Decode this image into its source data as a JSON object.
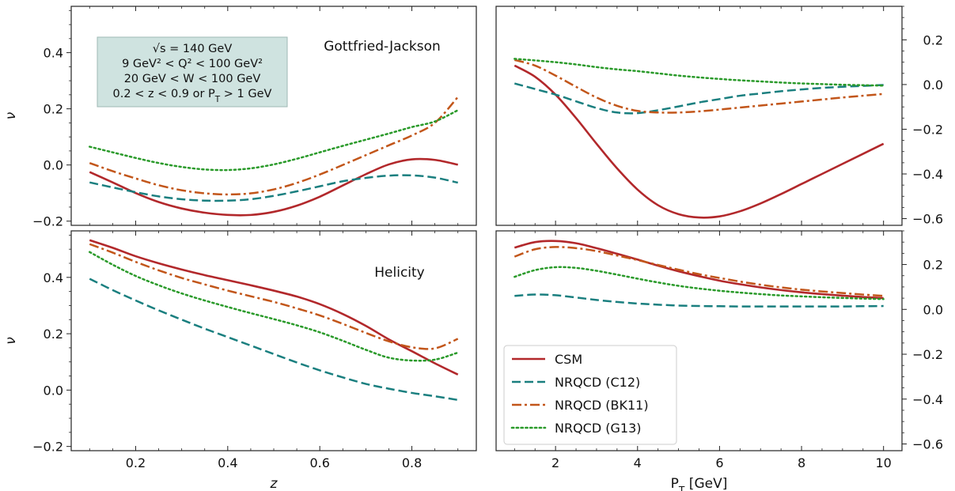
{
  "chart_data": [
    {
      "id": "top-left",
      "type": "line",
      "panel_title": "Gottfried-Jackson",
      "xlabel": "",
      "ylabel": "ν",
      "xlim": [
        0.06,
        0.94
      ],
      "ylim": [
        -0.215,
        0.565
      ],
      "xticks": [
        0.2,
        0.4,
        0.6,
        0.8
      ],
      "yticks": [
        -0.2,
        0.0,
        0.2,
        0.4
      ],
      "ytick_labels": [
        "−0.2",
        "0.0",
        "0.2",
        "0.4"
      ],
      "x_tick_labels_shown": false,
      "y_axis_side": "left",
      "x": [
        0.1,
        0.15,
        0.2,
        0.25,
        0.3,
        0.35,
        0.4,
        0.45,
        0.5,
        0.55,
        0.6,
        0.65,
        0.7,
        0.75,
        0.8,
        0.85,
        0.9
      ],
      "series": [
        {
          "name": "CSM",
          "values": [
            -0.025,
            -0.062,
            -0.1,
            -0.132,
            -0.155,
            -0.17,
            -0.178,
            -0.178,
            -0.167,
            -0.145,
            -0.113,
            -0.073,
            -0.033,
            0.002,
            0.02,
            0.018,
            0.001
          ]
        },
        {
          "name": "NRQCD (C12)",
          "values": [
            -0.062,
            -0.08,
            -0.097,
            -0.112,
            -0.122,
            -0.127,
            -0.127,
            -0.122,
            -0.11,
            -0.094,
            -0.076,
            -0.058,
            -0.046,
            -0.038,
            -0.037,
            -0.045,
            -0.063
          ]
        },
        {
          "name": "NRQCD (BK11)",
          "values": [
            0.007,
            -0.022,
            -0.048,
            -0.072,
            -0.09,
            -0.101,
            -0.105,
            -0.101,
            -0.087,
            -0.064,
            -0.034,
            0.0,
            0.035,
            0.07,
            0.105,
            0.15,
            0.242
          ]
        },
        {
          "name": "NRQCD (G13)",
          "values": [
            0.065,
            0.045,
            0.025,
            0.007,
            -0.007,
            -0.016,
            -0.018,
            -0.012,
            0.002,
            0.022,
            0.045,
            0.068,
            0.09,
            0.112,
            0.135,
            0.155,
            0.195
          ]
        }
      ],
      "info_box": [
        "√s = 140 GeV",
        "9 GeV² < Q² < 100 GeV²",
        "20 GeV < W < 100 GeV",
        "0.2 < z < 0.9 or P_T > 1 GeV"
      ]
    },
    {
      "id": "top-right",
      "type": "line",
      "panel_title": "",
      "xlabel": "",
      "ylabel": "",
      "xlim": [
        0.55,
        10.45
      ],
      "ylim": [
        -0.63,
        0.35
      ],
      "xticks": [
        2,
        4,
        6,
        8,
        10
      ],
      "yticks": [
        -0.6,
        -0.4,
        -0.2,
        0.0,
        0.2
      ],
      "ytick_labels": [
        "−0.6",
        "−0.4",
        "−0.2",
        "0.0",
        "0.2"
      ],
      "x_tick_labels_shown": false,
      "y_axis_side": "right",
      "x": [
        1,
        1.5,
        2,
        2.5,
        3,
        3.5,
        4,
        4.5,
        5,
        5.5,
        6,
        6.5,
        7,
        7.5,
        8,
        8.5,
        9,
        9.5,
        10
      ],
      "series": [
        {
          "name": "CSM",
          "values": [
            0.085,
            0.035,
            -0.045,
            -0.15,
            -0.265,
            -0.375,
            -0.47,
            -0.54,
            -0.58,
            -0.595,
            -0.59,
            -0.567,
            -0.532,
            -0.49,
            -0.445,
            -0.4,
            -0.355,
            -0.31,
            -0.265
          ]
        },
        {
          "name": "NRQCD (C12)",
          "values": [
            0.005,
            -0.02,
            -0.045,
            -0.075,
            -0.105,
            -0.125,
            -0.128,
            -0.115,
            -0.098,
            -0.08,
            -0.065,
            -0.05,
            -0.04,
            -0.03,
            -0.022,
            -0.015,
            -0.01,
            -0.006,
            -0.002
          ]
        },
        {
          "name": "NRQCD (BK11)",
          "values": [
            0.11,
            0.085,
            0.04,
            -0.01,
            -0.058,
            -0.095,
            -0.118,
            -0.125,
            -0.125,
            -0.12,
            -0.112,
            -0.103,
            -0.094,
            -0.085,
            -0.076,
            -0.067,
            -0.058,
            -0.05,
            -0.042
          ]
        },
        {
          "name": "NRQCD (G13)",
          "values": [
            0.115,
            0.108,
            0.1,
            0.09,
            0.078,
            0.068,
            0.06,
            0.05,
            0.04,
            0.032,
            0.025,
            0.019,
            0.014,
            0.009,
            0.005,
            0.002,
            -0.001,
            -0.003,
            -0.005
          ]
        }
      ]
    },
    {
      "id": "bottom-left",
      "type": "line",
      "panel_title": "Helicity",
      "xlabel": "z",
      "ylabel": "ν",
      "xlim": [
        0.06,
        0.94
      ],
      "ylim": [
        -0.215,
        0.565
      ],
      "xticks": [
        0.2,
        0.4,
        0.6,
        0.8
      ],
      "xtick_labels": [
        "0.2",
        "0.4",
        "0.6",
        "0.8"
      ],
      "yticks": [
        -0.2,
        0.0,
        0.2,
        0.4
      ],
      "ytick_labels": [
        "−0.2",
        "0.0",
        "0.2",
        "0.4"
      ],
      "x_tick_labels_shown": true,
      "y_axis_side": "left",
      "x": [
        0.1,
        0.15,
        0.2,
        0.25,
        0.3,
        0.35,
        0.4,
        0.45,
        0.5,
        0.55,
        0.6,
        0.65,
        0.7,
        0.75,
        0.8,
        0.85,
        0.9
      ],
      "series": [
        {
          "name": "CSM",
          "values": [
            0.532,
            0.505,
            0.475,
            0.45,
            0.428,
            0.408,
            0.39,
            0.372,
            0.353,
            0.332,
            0.305,
            0.27,
            0.228,
            0.18,
            0.138,
            0.095,
            0.055
          ]
        },
        {
          "name": "NRQCD (C12)",
          "values": [
            0.395,
            0.355,
            0.318,
            0.283,
            0.25,
            0.218,
            0.188,
            0.158,
            0.128,
            0.098,
            0.07,
            0.045,
            0.022,
            0.005,
            -0.01,
            -0.022,
            -0.035
          ]
        },
        {
          "name": "NRQCD (BK11)",
          "values": [
            0.518,
            0.488,
            0.455,
            0.425,
            0.398,
            0.375,
            0.353,
            0.333,
            0.313,
            0.29,
            0.265,
            0.235,
            0.203,
            0.173,
            0.152,
            0.148,
            0.182
          ]
        },
        {
          "name": "NRQCD (G13)",
          "values": [
            0.49,
            0.445,
            0.405,
            0.372,
            0.343,
            0.318,
            0.295,
            0.273,
            0.252,
            0.23,
            0.205,
            0.175,
            0.143,
            0.115,
            0.105,
            0.108,
            0.133
          ]
        }
      ]
    },
    {
      "id": "bottom-right",
      "type": "line",
      "panel_title": "",
      "xlabel": "P_T [GeV]",
      "ylabel": "",
      "xlim": [
        0.55,
        10.45
      ],
      "ylim": [
        -0.63,
        0.35
      ],
      "xticks": [
        2,
        4,
        6,
        8,
        10
      ],
      "xtick_labels": [
        "2",
        "4",
        "6",
        "8",
        "10"
      ],
      "yticks": [
        -0.6,
        -0.4,
        -0.2,
        0.0,
        0.2
      ],
      "ytick_labels": [
        "−0.6",
        "−0.4",
        "−0.2",
        "0.0",
        "0.2"
      ],
      "x_tick_labels_shown": true,
      "y_axis_side": "right",
      "x": [
        1,
        1.5,
        2,
        2.5,
        3,
        3.5,
        4,
        4.5,
        5,
        5.5,
        6,
        6.5,
        7,
        7.5,
        8,
        8.5,
        9,
        9.5,
        10
      ],
      "series": [
        {
          "name": "CSM",
          "values": [
            0.275,
            0.3,
            0.305,
            0.295,
            0.273,
            0.248,
            0.222,
            0.195,
            0.17,
            0.148,
            0.128,
            0.112,
            0.098,
            0.086,
            0.076,
            0.068,
            0.061,
            0.055,
            0.05
          ]
        },
        {
          "name": "NRQCD (C12)",
          "values": [
            0.06,
            0.066,
            0.063,
            0.053,
            0.042,
            0.033,
            0.026,
            0.021,
            0.017,
            0.015,
            0.014,
            0.013,
            0.013,
            0.013,
            0.013,
            0.013,
            0.013,
            0.014,
            0.015
          ]
        },
        {
          "name": "NRQCD (BK11)",
          "values": [
            0.235,
            0.268,
            0.278,
            0.273,
            0.26,
            0.24,
            0.22,
            0.198,
            0.177,
            0.157,
            0.14,
            0.124,
            0.11,
            0.098,
            0.088,
            0.08,
            0.073,
            0.066,
            0.06
          ]
        },
        {
          "name": "NRQCD (G13)",
          "values": [
            0.145,
            0.175,
            0.188,
            0.185,
            0.172,
            0.155,
            0.137,
            0.12,
            0.105,
            0.093,
            0.083,
            0.075,
            0.068,
            0.062,
            0.058,
            0.054,
            0.051,
            0.048,
            0.046
          ]
        }
      ],
      "legend": {
        "placement": "lower-left",
        "entries": [
          "CSM",
          "NRQCD (C12)",
          "NRQCD (BK11)",
          "NRQCD (G13)"
        ]
      }
    }
  ],
  "styles": {
    "CSM": {
      "color": "#b2282b",
      "dash": "solid"
    },
    "NRQCD (C12)": {
      "color": "#1a7f7f",
      "dash": "dashed"
    },
    "NRQCD (BK11)": {
      "color": "#c2561a",
      "dash": "dashdot"
    },
    "NRQCD (G13)": {
      "color": "#2a9a2a",
      "dash": "dotted"
    }
  },
  "info_box_color": "#cfe3e0"
}
